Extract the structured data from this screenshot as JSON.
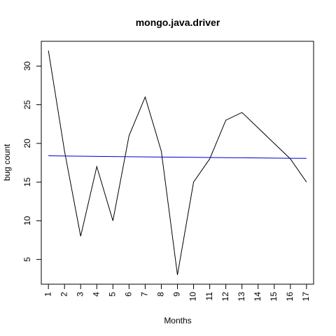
{
  "chart_data": {
    "type": "line",
    "title": "mongo.java.driver",
    "xlabel": "Months",
    "ylabel": "bug count",
    "x": [
      1,
      2,
      3,
      4,
      5,
      6,
      7,
      8,
      9,
      10,
      11,
      12,
      13,
      14,
      15,
      16,
      17
    ],
    "x_tick_labels": [
      "1",
      "2",
      "3",
      "4",
      "5",
      "6",
      "7",
      "8",
      "9",
      "10",
      "11",
      "12",
      "13",
      "14",
      "15",
      "16",
      "17"
    ],
    "y_ticks": [
      5,
      10,
      15,
      20,
      25,
      30
    ],
    "y_tick_labels": [
      "5",
      "10",
      "15",
      "20",
      "25",
      "30"
    ],
    "xlim": [
      0.56,
      17.44
    ],
    "ylim": [
      1.8,
      33.2
    ],
    "grid": false,
    "series": [
      {
        "values": [
          32,
          19,
          8,
          17,
          10,
          21,
          26,
          19,
          3,
          15,
          18,
          23,
          24,
          22,
          20,
          18,
          15
        ],
        "color": "#000000"
      },
      {
        "values": [
          18.4,
          18.37,
          18.35,
          18.33,
          18.3,
          18.28,
          18.26,
          18.24,
          18.22,
          18.2,
          18.18,
          18.16,
          18.14,
          18.12,
          18.1,
          18.08,
          18.06
        ],
        "color": "#0000cc"
      }
    ]
  }
}
